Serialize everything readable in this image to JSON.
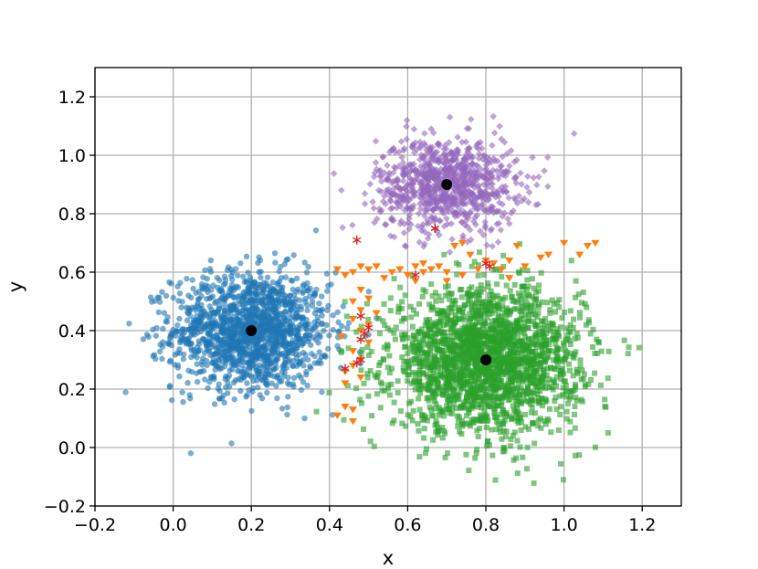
{
  "chart_data": {
    "type": "scatter",
    "title": "",
    "xlabel": "x",
    "ylabel": "y",
    "xlim": [
      -0.2,
      1.3
    ],
    "ylim": [
      -0.2,
      1.3
    ],
    "xticks": [
      -0.2,
      0.0,
      0.2,
      0.4,
      0.6,
      0.8,
      1.0,
      1.2
    ],
    "xtick_labels": [
      "−0.2",
      "0.0",
      "0.2",
      "0.4",
      "0.6",
      "0.8",
      "1.0",
      "1.2"
    ],
    "yticks": [
      -0.2,
      0.0,
      0.2,
      0.4,
      0.6,
      0.8,
      1.0,
      1.2
    ],
    "ytick_labels": [
      "−0.2",
      "0.0",
      "0.2",
      "0.4",
      "0.6",
      "0.8",
      "1.0",
      "1.2"
    ],
    "grid": true,
    "legend": false,
    "clusters": [
      {
        "marker": "circle",
        "color": "#1f77b4",
        "center": [
          0.2,
          0.4
        ],
        "std": [
          0.1,
          0.1
        ],
        "count": 1500
      },
      {
        "marker": "diamond",
        "color": "#9467bd",
        "center": [
          0.7,
          0.9
        ],
        "std": [
          0.09,
          0.08
        ],
        "count": 900
      },
      {
        "marker": "square",
        "color": "#2ca02c",
        "center": [
          0.8,
          0.3
        ],
        "std": [
          0.12,
          0.12
        ],
        "count": 2200
      }
    ],
    "boundary_points": {
      "marker": "triangle-down",
      "color": "#ff7f0e",
      "points": [
        [
          0.42,
          0.61
        ],
        [
          0.44,
          0.59
        ],
        [
          0.46,
          0.6
        ],
        [
          0.48,
          0.62
        ],
        [
          0.5,
          0.61
        ],
        [
          0.52,
          0.62
        ],
        [
          0.54,
          0.58
        ],
        [
          0.56,
          0.6
        ],
        [
          0.58,
          0.61
        ],
        [
          0.6,
          0.59
        ],
        [
          0.62,
          0.62
        ],
        [
          0.64,
          0.6
        ],
        [
          0.66,
          0.61
        ],
        [
          0.68,
          0.62
        ],
        [
          0.7,
          0.6
        ],
        [
          0.72,
          0.69
        ],
        [
          0.74,
          0.7
        ],
        [
          0.76,
          0.66
        ],
        [
          0.78,
          0.61
        ],
        [
          0.8,
          0.64
        ],
        [
          0.82,
          0.63
        ],
        [
          0.84,
          0.61
        ],
        [
          0.86,
          0.64
        ],
        [
          0.88,
          0.69
        ],
        [
          0.9,
          0.62
        ],
        [
          0.94,
          0.65
        ],
        [
          0.96,
          0.66
        ],
        [
          1.0,
          0.7
        ],
        [
          1.04,
          0.66
        ],
        [
          1.06,
          0.69
        ],
        [
          1.08,
          0.7
        ],
        [
          0.74,
          0.59
        ],
        [
          0.62,
          0.57
        ],
        [
          0.7,
          0.57
        ],
        [
          0.86,
          0.58
        ],
        [
          0.64,
          0.63
        ],
        [
          0.48,
          0.54
        ],
        [
          0.46,
          0.5
        ],
        [
          0.5,
          0.51
        ],
        [
          0.48,
          0.47
        ],
        [
          0.46,
          0.44
        ],
        [
          0.5,
          0.42
        ],
        [
          0.48,
          0.4
        ],
        [
          0.5,
          0.36
        ],
        [
          0.46,
          0.33
        ],
        [
          0.48,
          0.3
        ],
        [
          0.46,
          0.28
        ],
        [
          0.44,
          0.26
        ],
        [
          0.48,
          0.24
        ],
        [
          0.46,
          0.13
        ],
        [
          0.44,
          0.14
        ],
        [
          0.42,
          0.11
        ],
        [
          0.46,
          0.09
        ],
        [
          0.44,
          0.22
        ],
        [
          0.43,
          0.38
        ],
        [
          0.52,
          0.46
        ]
      ]
    },
    "misclassified_points": {
      "marker": "star",
      "color": "#d62728",
      "points": [
        [
          0.47,
          0.71
        ],
        [
          0.67,
          0.75
        ],
        [
          0.62,
          0.59
        ],
        [
          0.8,
          0.63
        ],
        [
          0.49,
          0.39
        ],
        [
          0.48,
          0.37
        ],
        [
          0.48,
          0.3
        ],
        [
          0.44,
          0.27
        ],
        [
          0.47,
          0.29
        ],
        [
          0.5,
          0.41
        ],
        [
          0.48,
          0.45
        ],
        [
          0.81,
          0.62
        ]
      ]
    },
    "centroids": {
      "marker": "circle",
      "color": "#000000",
      "points": [
        [
          0.2,
          0.4
        ],
        [
          0.7,
          0.9
        ],
        [
          0.8,
          0.3
        ]
      ]
    }
  }
}
